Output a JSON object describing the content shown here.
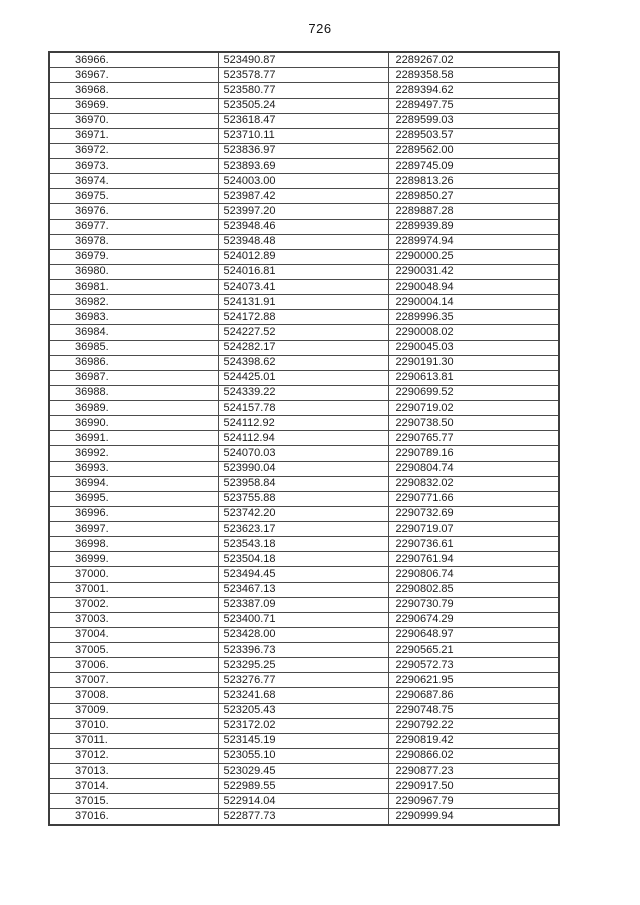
{
  "page": {
    "number": "726"
  },
  "table": {
    "rows": [
      [
        "36966.",
        "523490.87",
        "2289267.02"
      ],
      [
        "36967.",
        "523578.77",
        "2289358.58"
      ],
      [
        "36968.",
        "523580.77",
        "2289394.62"
      ],
      [
        "36969.",
        "523505.24",
        "2289497.75"
      ],
      [
        "36970.",
        "523618.47",
        "2289599.03"
      ],
      [
        "36971.",
        "523710.11",
        "2289503.57"
      ],
      [
        "36972.",
        "523836.97",
        "2289562.00"
      ],
      [
        "36973.",
        "523893.69",
        "2289745.09"
      ],
      [
        "36974.",
        "524003.00",
        "2289813.26"
      ],
      [
        "36975.",
        "523987.42",
        "2289850.27"
      ],
      [
        "36976.",
        "523997.20",
        "2289887.28"
      ],
      [
        "36977.",
        "523948.46",
        "2289939.89"
      ],
      [
        "36978.",
        "523948.48",
        "2289974.94"
      ],
      [
        "36979.",
        "524012.89",
        "2290000.25"
      ],
      [
        "36980.",
        "524016.81",
        "2290031.42"
      ],
      [
        "36981.",
        "524073.41",
        "2290048.94"
      ],
      [
        "36982.",
        "524131.91",
        "2290004.14"
      ],
      [
        "36983.",
        "524172.88",
        "2289996.35"
      ],
      [
        "36984.",
        "524227.52",
        "2290008.02"
      ],
      [
        "36985.",
        "524282.17",
        "2290045.03"
      ],
      [
        "36986.",
        "524398.62",
        "2290191.30"
      ],
      [
        "36987.",
        "524425.01",
        "2290613.81"
      ],
      [
        "36988.",
        "524339.22",
        "2290699.52"
      ],
      [
        "36989.",
        "524157.78",
        "2290719.02"
      ],
      [
        "36990.",
        "524112.92",
        "2290738.50"
      ],
      [
        "36991.",
        "524112.94",
        "2290765.77"
      ],
      [
        "36992.",
        "524070.03",
        "2290789.16"
      ],
      [
        "36993.",
        "523990.04",
        "2290804.74"
      ],
      [
        "36994.",
        "523958.84",
        "2290832.02"
      ],
      [
        "36995.",
        "523755.88",
        "2290771.66"
      ],
      [
        "36996.",
        "523742.20",
        "2290732.69"
      ],
      [
        "36997.",
        "523623.17",
        "2290719.07"
      ],
      [
        "36998.",
        "523543.18",
        "2290736.61"
      ],
      [
        "36999.",
        "523504.18",
        "2290761.94"
      ],
      [
        "37000.",
        "523494.45",
        "2290806.74"
      ],
      [
        "37001.",
        "523467.13",
        "2290802.85"
      ],
      [
        "37002.",
        "523387.09",
        "2290730.79"
      ],
      [
        "37003.",
        "523400.71",
        "2290674.29"
      ],
      [
        "37004.",
        "523428.00",
        "2290648.97"
      ],
      [
        "37005.",
        "523396.73",
        "2290565.21"
      ],
      [
        "37006.",
        "523295.25",
        "2290572.73"
      ],
      [
        "37007.",
        "523276.77",
        "2290621.95"
      ],
      [
        "37008.",
        "523241.68",
        "2290687.86"
      ],
      [
        "37009.",
        "523205.43",
        "2290748.75"
      ],
      [
        "37010.",
        "523172.02",
        "2290792.22"
      ],
      [
        "37011.",
        "523145.19",
        "2290819.42"
      ],
      [
        "37012.",
        "523055.10",
        "2290866.02"
      ],
      [
        "37013.",
        "523029.45",
        "2290877.23"
      ],
      [
        "37014.",
        "522989.55",
        "2290917.50"
      ],
      [
        "37015.",
        "522914.04",
        "2290967.79"
      ],
      [
        "37016.",
        "522877.73",
        "2290999.94"
      ]
    ]
  }
}
